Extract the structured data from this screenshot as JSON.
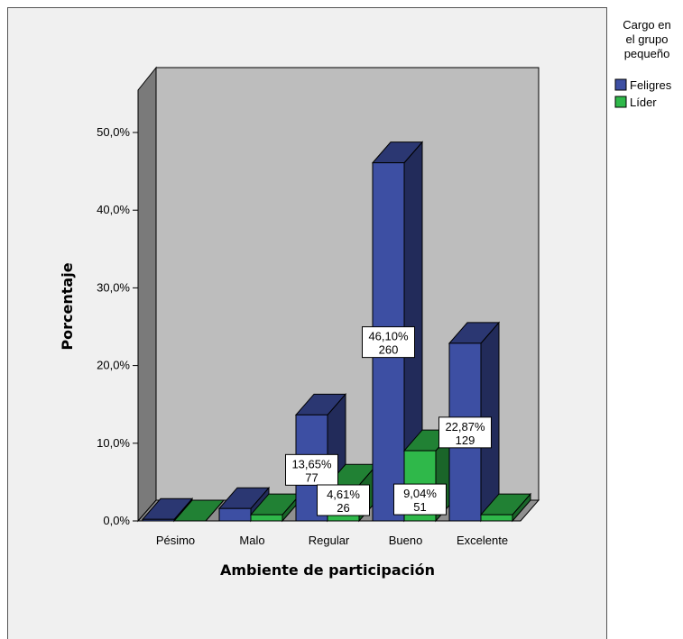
{
  "chart_data": {
    "type": "bar",
    "title": "",
    "xlabel": "Ambiente de participación",
    "ylabel": "Porcentaje",
    "categories": [
      "Pésimo",
      "Malo",
      "Regular",
      "Bueno",
      "Excelente"
    ],
    "yticks": [
      "0,0%",
      "10,0%",
      "20,0%",
      "30,0%",
      "40,0%",
      "50,0%"
    ],
    "ylim": [
      0,
      55
    ],
    "grid": false,
    "legend_position": "top-right",
    "legend_title": [
      "Cargo en",
      "el grupo",
      "pequeño"
    ],
    "series": [
      {
        "name": "Feligres",
        "color": "#3d4fa3",
        "values": [
          0.2,
          1.6,
          13.65,
          46.1,
          22.87
        ],
        "labels": [
          null,
          null,
          "13,65%",
          "46,10%",
          "22,87%"
        ],
        "counts": [
          null,
          null,
          "77",
          "260",
          "129"
        ]
      },
      {
        "name": "Líder",
        "color": "#2fb84a",
        "values": [
          0,
          0.8,
          4.61,
          9.04,
          0.8
        ],
        "labels": [
          null,
          null,
          "4,61%",
          "9,04%",
          null
        ],
        "counts": [
          null,
          null,
          "26",
          "51",
          null
        ]
      }
    ]
  }
}
